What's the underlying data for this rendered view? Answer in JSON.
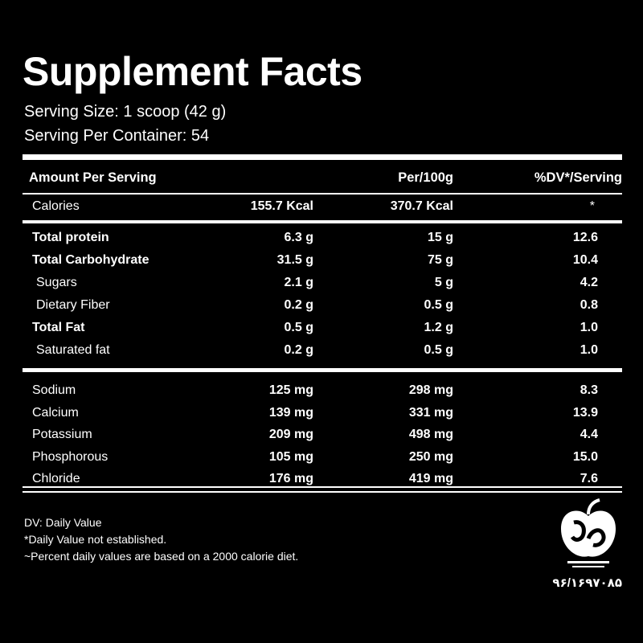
{
  "title": "Supplement Facts",
  "serving_size": "Serving Size: 1 scoop (42 g)",
  "servings_per_container": "Serving Per Container: 54",
  "header": {
    "amount_per_serving": "Amount Per Serving",
    "per_100g": "Per/100g",
    "dv_per_serving": "%DV*/Serving"
  },
  "calories": {
    "label": "Calories",
    "per_serving": "155.7 Kcal",
    "per_100g": "370.7 Kcal",
    "dv": "*"
  },
  "macros": [
    {
      "label": "Total protein",
      "per_serving": "6.3 g",
      "per_100g": "15 g",
      "dv": "12.6"
    },
    {
      "label": "Total Carbohydrate",
      "per_serving": "31.5 g",
      "per_100g": "75 g",
      "dv": "10.4"
    },
    {
      "label": "Sugars",
      "per_serving": "2.1 g",
      "per_100g": "5 g",
      "dv": "4.2"
    },
    {
      "label": "Dietary Fiber",
      "per_serving": "0.2 g",
      "per_100g": "0.5 g",
      "dv": "0.8"
    },
    {
      "label": "Total Fat",
      "per_serving": "0.5 g",
      "per_100g": "1.2 g",
      "dv": "1.0"
    },
    {
      "label": "Saturated fat",
      "per_serving": "0.2 g",
      "per_100g": "0.5 g",
      "dv": "1.0"
    }
  ],
  "minerals": [
    {
      "label": "Sodium",
      "per_serving": "125 mg",
      "per_100g": "298 mg",
      "dv": "8.3"
    },
    {
      "label": "Calcium",
      "per_serving": "139 mg",
      "per_100g": "331 mg",
      "dv": "13.9"
    },
    {
      "label": "Potassium",
      "per_serving": "209 mg",
      "per_100g": "498 mg",
      "dv": "4.4"
    },
    {
      "label": "Phosphorous",
      "per_serving": "105 mg",
      "per_100g": "250 mg",
      "dv": "15.0"
    },
    {
      "label": "Chloride",
      "per_serving": "176 mg",
      "per_100g": "419 mg",
      "dv": "7.6"
    }
  ],
  "footnotes": {
    "dv_definition": "DV: Daily Value",
    "not_established": "*Daily Value not established.",
    "basis": "~Percent daily values are based on a 2000 calorie diet."
  },
  "registration_number": "۹۶/۱۶۹۷۰۸۵",
  "logo_icon": "apple-seal-icon"
}
